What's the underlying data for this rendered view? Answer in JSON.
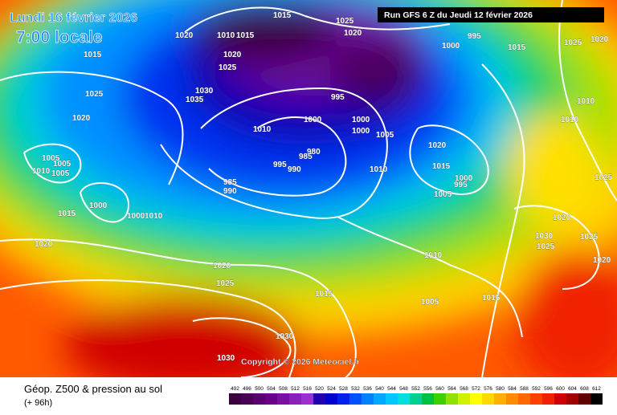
{
  "header": {
    "date": "Lundi 16 février 2026",
    "time": "7:00 locale",
    "run": "Run GFS 6 Z du Jeudi 12 février 2026"
  },
  "footer": {
    "title": "Géop. Z500 & pression au sol",
    "lead": "(+ 96h)",
    "copyright": "Copyright © 2026 Meteociel.fr"
  },
  "legend": {
    "values": [
      492,
      496,
      500,
      504,
      508,
      512,
      516,
      520,
      524,
      528,
      532,
      536,
      540,
      544,
      548,
      552,
      556,
      560,
      564,
      568,
      572,
      576,
      580,
      584,
      588,
      592,
      596,
      600,
      604,
      608,
      612
    ],
    "colors": [
      "#3a0040",
      "#4a0058",
      "#5a0070",
      "#6a0088",
      "#7a10a0",
      "#8a20b8",
      "#9a30d0",
      "#2000b0",
      "#0000d0",
      "#0020f0",
      "#0050ff",
      "#0080ff",
      "#00a8ff",
      "#00c8ff",
      "#00e0e0",
      "#00d090",
      "#00c040",
      "#40d000",
      "#90e000",
      "#d0f000",
      "#ffff00",
      "#ffd800",
      "#ffb000",
      "#ff8c00",
      "#ff6800",
      "#ff4000",
      "#f02000",
      "#d00000",
      "#a00000",
      "#600000",
      "#000000"
    ]
  },
  "isobar_labels": [
    "1015",
    "1025",
    "1020",
    "1010",
    "1015",
    "1020",
    "995",
    "1000",
    "1025",
    "1020",
    "1015",
    "1015",
    "1020",
    "1025",
    "1030",
    "1035",
    "995",
    "1025",
    "1010",
    "1020",
    "1000",
    "1000",
    "1000",
    "1010",
    "1010",
    "1005",
    "1020",
    "1005",
    "1005",
    "1010",
    "1005",
    "980",
    "985",
    "995",
    "990",
    "1010",
    "1015",
    "1025",
    "1000",
    "995",
    "985",
    "990",
    "1005",
    "1000",
    "1015",
    "1000",
    "1010",
    "1020",
    "1030",
    "1025",
    "1025",
    "1020",
    "1010",
    "1020",
    "1025",
    "1020",
    "1015",
    "1005",
    "1015",
    "1030",
    "1030"
  ]
}
